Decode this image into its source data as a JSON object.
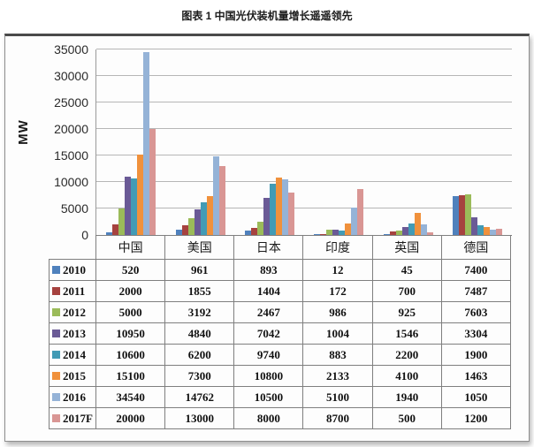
{
  "title": "图表 1 中国光伏装机量增长遥遥领先",
  "chart_data": {
    "type": "bar",
    "title": "图表 1 中国光伏装机量增长遥遥领先",
    "unit_label": "MW",
    "ylabel": "MW",
    "xlabel": "",
    "categories": [
      "中国",
      "美国",
      "日本",
      "印度",
      "英国",
      "德国"
    ],
    "series": [
      {
        "name": "2010",
        "color": "#4F81BD",
        "values": [
          520,
          961,
          893,
          12,
          45,
          7400
        ]
      },
      {
        "name": "2011",
        "color": "#A6423F",
        "values": [
          2000,
          1855,
          1404,
          172,
          700,
          7487
        ]
      },
      {
        "name": "2012",
        "color": "#9BBB59",
        "values": [
          5000,
          3192,
          2467,
          986,
          925,
          7603
        ]
      },
      {
        "name": "2013",
        "color": "#6A5A96",
        "values": [
          10950,
          4840,
          7042,
          1004,
          1546,
          3304
        ]
      },
      {
        "name": "2014",
        "color": "#429BB5",
        "values": [
          10600,
          6200,
          9740,
          883,
          2200,
          1900
        ]
      },
      {
        "name": "2015",
        "color": "#F0913C",
        "values": [
          15100,
          7300,
          10800,
          2133,
          4100,
          1463
        ]
      },
      {
        "name": "2016",
        "color": "#95B3D7",
        "values": [
          34540,
          14762,
          10500,
          5100,
          1940,
          1050
        ]
      },
      {
        "name": "2017F",
        "color": "#D99694",
        "values": [
          20000,
          13000,
          8000,
          8700,
          500,
          1200
        ]
      }
    ],
    "ylim": [
      0,
      35000
    ],
    "ytick_step": 5000,
    "yticks": [
      0,
      5000,
      10000,
      15000,
      20000,
      25000,
      30000,
      35000
    ],
    "grid": true,
    "legend_position": "data-table-row-headers"
  }
}
